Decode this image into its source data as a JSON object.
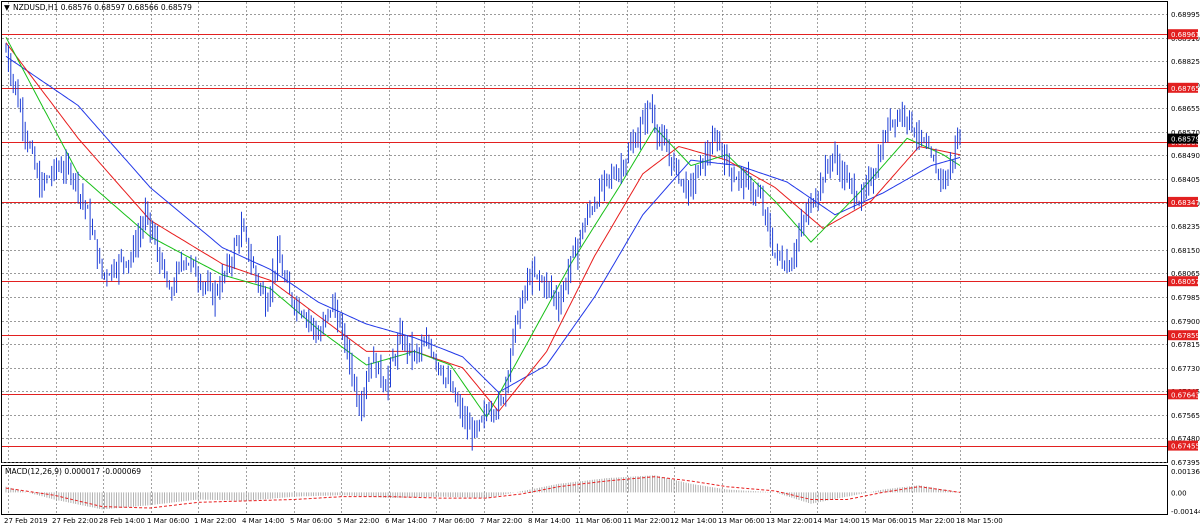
{
  "header": {
    "menu_icon": "triangle-down-icon",
    "symbol_text": "NZDUSD,H1 0.68576 0.68597 0.68566 0.68579"
  },
  "macd_label": "MACD(12,26,9) 0.000017 -0.000069",
  "colors": {
    "candles": "#1f3fd6",
    "ma_fast": "#18c018",
    "ma_mid": "#e81c1c",
    "ma_slow": "#2238e8",
    "level_line": "#e22020",
    "grid": "#7a7a7a",
    "macd_hist": "#a0a0a0",
    "macd_signal": "#e82020"
  },
  "chart_data": [
    {
      "type": "candlestick",
      "title": "NZDUSD,H1",
      "ylim": [
        0.67395,
        0.69035
      ],
      "y_ticks": [
        "0.68995",
        "0.68910",
        "0.68825",
        "0.68740",
        "0.68655",
        "0.68570",
        "0.68490",
        "0.68405",
        "0.68320",
        "0.68235",
        "0.68150",
        "0.68065",
        "0.67985",
        "0.67900",
        "0.67815",
        "0.67730",
        "0.67645",
        "0.67565",
        "0.67480",
        "0.67395"
      ],
      "x_ticks": [
        "27 Feb 2019",
        "27 Feb 22:00",
        "28 Feb 14:00",
        "1 Mar 06:00",
        "1 Mar 22:00",
        "4 Mar 14:00",
        "5 Mar 06:00",
        "5 Mar 22:00",
        "6 Mar 14:00",
        "7 Mar 06:00",
        "7 Mar 22:00",
        "8 Mar 14:00",
        "11 Mar 06:00",
        "11 Mar 22:00",
        "12 Mar 14:00",
        "13 Mar 06:00",
        "13 Mar 22:00",
        "14 Mar 14:00",
        "15 Mar 06:00",
        "15 Mar 22:00",
        "18 Mar 15:00"
      ],
      "levels": [
        "0.68961",
        "0.68765",
        "0.68566",
        "0.68347",
        "0.68057",
        "0.67859",
        "0.67643",
        "0.67455"
      ],
      "current_price": "0.68579",
      "path": [
        [
          0,
          0.689
        ],
        [
          6,
          0.6868
        ],
        [
          14,
          0.684
        ],
        [
          22,
          0.6848
        ],
        [
          28,
          0.6845
        ],
        [
          34,
          0.683
        ],
        [
          40,
          0.6808
        ],
        [
          46,
          0.6812
        ],
        [
          52,
          0.6815
        ],
        [
          58,
          0.683
        ],
        [
          62,
          0.682
        ],
        [
          68,
          0.68
        ],
        [
          74,
          0.6815
        ],
        [
          80,
          0.6808
        ],
        [
          86,
          0.68
        ],
        [
          92,
          0.681
        ],
        [
          98,
          0.6825
        ],
        [
          103,
          0.681
        ],
        [
          108,
          0.6798
        ],
        [
          113,
          0.6815
        ],
        [
          118,
          0.68
        ],
        [
          124,
          0.6795
        ],
        [
          130,
          0.6785
        ],
        [
          136,
          0.6798
        ],
        [
          142,
          0.678
        ],
        [
          147,
          0.676
        ],
        [
          152,
          0.6778
        ],
        [
          158,
          0.6768
        ],
        [
          164,
          0.6785
        ],
        [
          170,
          0.6778
        ],
        [
          176,
          0.6783
        ],
        [
          182,
          0.6772
        ],
        [
          187,
          0.6762
        ],
        [
          192,
          0.6752
        ],
        [
          196,
          0.675
        ],
        [
          201,
          0.676
        ],
        [
          206,
          0.676
        ],
        [
          212,
          0.679
        ],
        [
          218,
          0.6808
        ],
        [
          224,
          0.6805
        ],
        [
          230,
          0.6798
        ],
        [
          236,
          0.6815
        ],
        [
          242,
          0.683
        ],
        [
          248,
          0.684
        ],
        [
          256,
          0.6848
        ],
        [
          262,
          0.6858
        ],
        [
          268,
          0.687
        ],
        [
          272,
          0.6858
        ],
        [
          278,
          0.6848
        ],
        [
          284,
          0.6838
        ],
        [
          290,
          0.685
        ],
        [
          296,
          0.6858
        ],
        [
          302,
          0.6845
        ],
        [
          308,
          0.6842
        ],
        [
          314,
          0.6835
        ],
        [
          320,
          0.6815
        ],
        [
          326,
          0.6812
        ],
        [
          332,
          0.6828
        ],
        [
          338,
          0.684
        ],
        [
          344,
          0.6852
        ],
        [
          350,
          0.6842
        ],
        [
          356,
          0.6835
        ],
        [
          362,
          0.6848
        ],
        [
          368,
          0.6865
        ],
        [
          374,
          0.6868
        ],
        [
          380,
          0.6858
        ],
        [
          386,
          0.6848
        ],
        [
          391,
          0.6842
        ],
        [
          396,
          0.6858
        ]
      ],
      "ma_fast_path": [
        [
          0,
          0.6895
        ],
        [
          30,
          0.6845
        ],
        [
          60,
          0.6822
        ],
        [
          90,
          0.6808
        ],
        [
          110,
          0.6803
        ],
        [
          130,
          0.6788
        ],
        [
          150,
          0.6775
        ],
        [
          170,
          0.678
        ],
        [
          185,
          0.6775
        ],
        [
          200,
          0.6756
        ],
        [
          215,
          0.678
        ],
        [
          235,
          0.6812
        ],
        [
          255,
          0.684
        ],
        [
          270,
          0.6862
        ],
        [
          285,
          0.6848
        ],
        [
          300,
          0.6852
        ],
        [
          320,
          0.6835
        ],
        [
          335,
          0.682
        ],
        [
          355,
          0.6838
        ],
        [
          375,
          0.6858
        ],
        [
          390,
          0.6852
        ],
        [
          397,
          0.6848
        ]
      ],
      "ma_mid_path": [
        [
          0,
          0.6893
        ],
        [
          30,
          0.6858
        ],
        [
          60,
          0.6828
        ],
        [
          90,
          0.6812
        ],
        [
          110,
          0.6806
        ],
        [
          130,
          0.6793
        ],
        [
          150,
          0.678
        ],
        [
          170,
          0.678
        ],
        [
          190,
          0.6774
        ],
        [
          205,
          0.6758
        ],
        [
          225,
          0.678
        ],
        [
          245,
          0.6815
        ],
        [
          265,
          0.6845
        ],
        [
          280,
          0.6855
        ],
        [
          300,
          0.685
        ],
        [
          320,
          0.684
        ],
        [
          340,
          0.6825
        ],
        [
          360,
          0.6835
        ],
        [
          380,
          0.6855
        ],
        [
          397,
          0.6852
        ]
      ],
      "ma_slow_path": [
        [
          0,
          0.6888
        ],
        [
          30,
          0.687
        ],
        [
          60,
          0.684
        ],
        [
          90,
          0.6818
        ],
        [
          110,
          0.681
        ],
        [
          130,
          0.6798
        ],
        [
          150,
          0.679
        ],
        [
          170,
          0.6785
        ],
        [
          190,
          0.6778
        ],
        [
          205,
          0.6765
        ],
        [
          225,
          0.6775
        ],
        [
          245,
          0.68
        ],
        [
          265,
          0.683
        ],
        [
          285,
          0.685
        ],
        [
          305,
          0.6848
        ],
        [
          325,
          0.6842
        ],
        [
          345,
          0.683
        ],
        [
          365,
          0.6838
        ],
        [
          385,
          0.6848
        ],
        [
          397,
          0.6851
        ]
      ]
    },
    {
      "type": "macd",
      "title": "MACD(12,26,9)",
      "ylim": [
        -0.00145,
        0.00136
      ],
      "y_ticks": [
        "0.001363",
        "0.00",
        "-0.001445"
      ],
      "macd_path": [
        [
          0,
          0.0004
        ],
        [
          20,
          -0.0005
        ],
        [
          40,
          -0.0012
        ],
        [
          60,
          -0.0009
        ],
        [
          80,
          -0.0005
        ],
        [
          100,
          -0.0006
        ],
        [
          120,
          -0.0003
        ],
        [
          140,
          -0.0002
        ],
        [
          160,
          -0.0004
        ],
        [
          180,
          -0.0003
        ],
        [
          200,
          -0.0004
        ],
        [
          215,
          0.0001
        ],
        [
          230,
          0.0006
        ],
        [
          250,
          0.001
        ],
        [
          270,
          0.0012
        ],
        [
          285,
          0.0006
        ],
        [
          300,
          0.0002
        ],
        [
          320,
          0.0
        ],
        [
          335,
          -0.0008
        ],
        [
          350,
          -0.0003
        ],
        [
          365,
          0.0002
        ],
        [
          380,
          0.0005
        ],
        [
          397,
          0.0
        ]
      ],
      "signal_path": [
        [
          0,
          0.0003
        ],
        [
          20,
          -0.0002
        ],
        [
          40,
          -0.001
        ],
        [
          60,
          -0.0011
        ],
        [
          80,
          -0.0007
        ],
        [
          100,
          -0.0006
        ],
        [
          120,
          -0.0005
        ],
        [
          140,
          -0.0003
        ],
        [
          160,
          -0.0003
        ],
        [
          180,
          -0.0004
        ],
        [
          200,
          -0.0004
        ],
        [
          215,
          -0.0001
        ],
        [
          230,
          0.0004
        ],
        [
          250,
          0.0008
        ],
        [
          270,
          0.0011
        ],
        [
          285,
          0.0008
        ],
        [
          300,
          0.0004
        ],
        [
          320,
          0.0001
        ],
        [
          335,
          -0.0005
        ],
        [
          350,
          -0.0005
        ],
        [
          365,
          0.0
        ],
        [
          380,
          0.0004
        ],
        [
          397,
          0.0
        ]
      ]
    }
  ]
}
